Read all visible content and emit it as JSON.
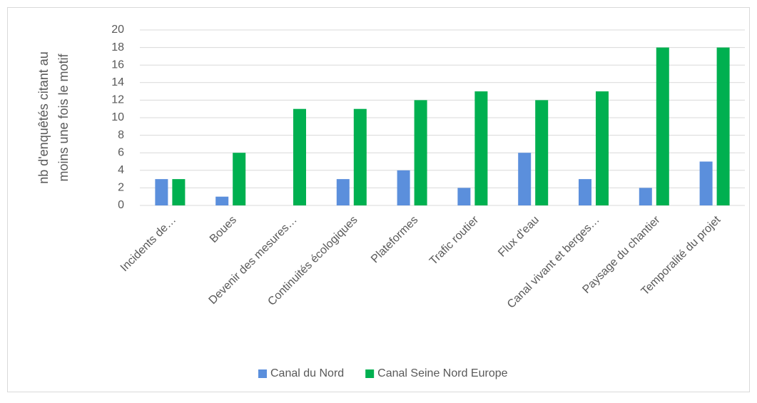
{
  "chart_data": {
    "type": "bar",
    "y_label": [
      "nb d'enquêtés citant au",
      "moins une fois le motif"
    ],
    "categories": [
      "Incidents de…",
      "Boues",
      "Devenir des mesures…",
      "Continuités écologiques",
      "Plateformes",
      "Trafic routier",
      "Flux d'eau",
      "Canal vivant et berges…",
      "Paysage du chantier",
      "Temporalité du projet"
    ],
    "series": [
      {
        "name": "Canal du Nord",
        "color": "#5b8fdc",
        "values": [
          3,
          1,
          0,
          3,
          4,
          2,
          6,
          3,
          2,
          5
        ]
      },
      {
        "name": "Canal Seine Nord Europe",
        "color": "#00b050",
        "values": [
          3,
          6,
          11,
          11,
          12,
          13,
          12,
          13,
          18,
          18
        ]
      }
    ],
    "ylim": [
      0,
      20
    ],
    "yticks": [
      0,
      2,
      4,
      6,
      8,
      10,
      12,
      14,
      16,
      18,
      20
    ],
    "grid": true,
    "legend": "bottom"
  }
}
